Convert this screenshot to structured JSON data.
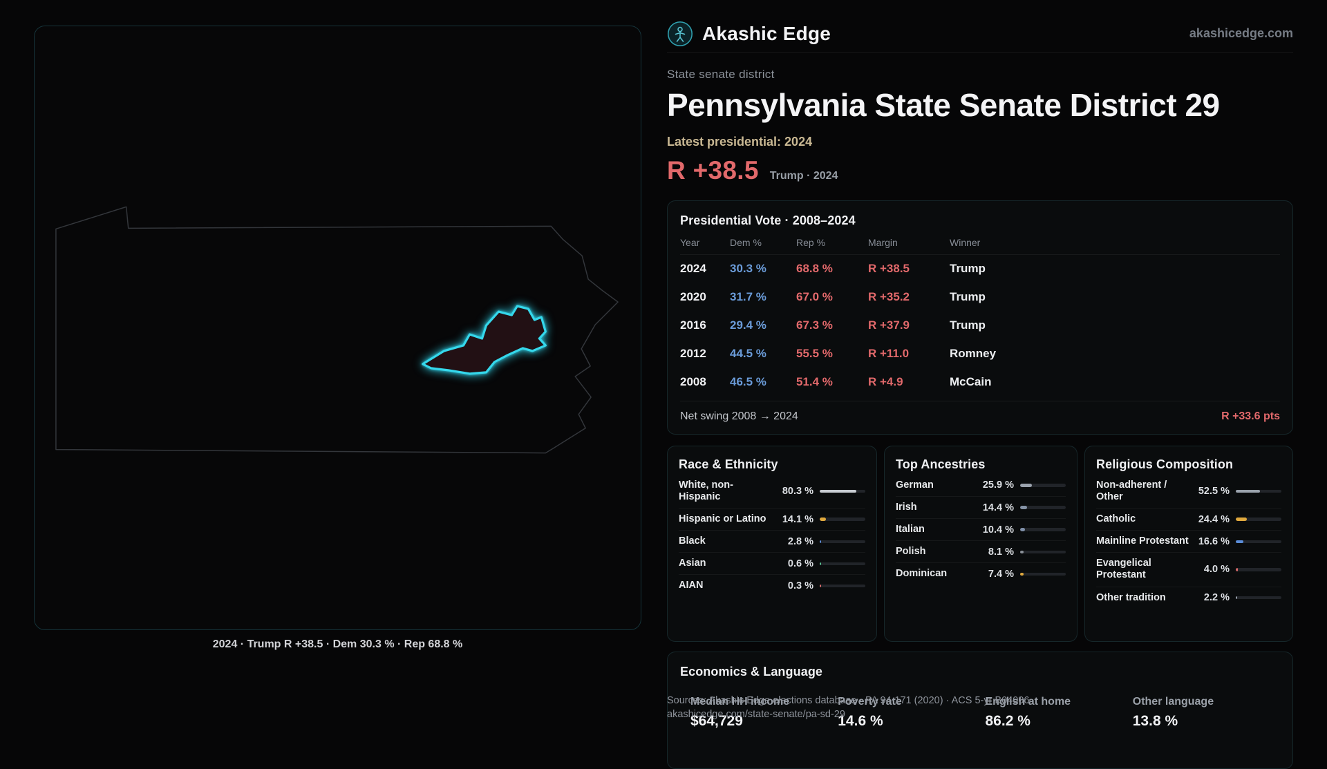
{
  "header": {
    "brand": "Akashic Edge",
    "site": "akashicedge.com"
  },
  "hero": {
    "kicker": "State senate district",
    "title": "Pennsylvania State Senate District 29",
    "latest_label": "Latest presidential: 2024",
    "margin": "R +38.5",
    "margin_sub": "Trump · 2024"
  },
  "map": {
    "caption": "2024 · Trump R +38.5 · Dem 30.3 % · Rep 68.8 %"
  },
  "presidential": {
    "title": "Presidential Vote · 2008–2024",
    "columns": [
      "Year",
      "Dem %",
      "Rep %",
      "Margin",
      "Winner"
    ],
    "rows": [
      {
        "year": "2024",
        "dem": "30.3 %",
        "rep": "68.8 %",
        "margin": "R +38.5",
        "winner": "Trump"
      },
      {
        "year": "2020",
        "dem": "31.7 %",
        "rep": "67.0 %",
        "margin": "R +35.2",
        "winner": "Trump"
      },
      {
        "year": "2016",
        "dem": "29.4 %",
        "rep": "67.3 %",
        "margin": "R +37.9",
        "winner": "Trump"
      },
      {
        "year": "2012",
        "dem": "44.5 %",
        "rep": "55.5 %",
        "margin": "R +11.0",
        "winner": "Romney"
      },
      {
        "year": "2008",
        "dem": "46.5 %",
        "rep": "51.4 %",
        "margin": "R +4.9",
        "winner": "McCain"
      }
    ],
    "net_swing_label": "Net swing 2008 → 2024",
    "net_swing_value": "R +33.6 pts"
  },
  "race": {
    "title": "Race & Ethnicity",
    "rows": [
      {
        "label": "White, non-Hispanic",
        "value": "80.3 %",
        "pct": 80.3,
        "color": "#c8ccd2"
      },
      {
        "label": "Hispanic or Latino",
        "value": "14.1 %",
        "pct": 14.1,
        "color": "#e0a93e"
      },
      {
        "label": "Black",
        "value": "2.8 %",
        "pct": 2.8,
        "color": "#5b8dd9"
      },
      {
        "label": "Asian",
        "value": "0.6 %",
        "pct": 0.6,
        "color": "#57bd8e"
      },
      {
        "label": "AIAN",
        "value": "0.3 %",
        "pct": 0.3,
        "color": "#d96b6b"
      }
    ]
  },
  "ancestries": {
    "title": "Top Ancestries",
    "rows": [
      {
        "label": "German",
        "value": "25.9 %",
        "pct": 25.9,
        "color": "#9aa2ac"
      },
      {
        "label": "Irish",
        "value": "14.4 %",
        "pct": 14.4,
        "color": "#8593a6"
      },
      {
        "label": "Italian",
        "value": "10.4 %",
        "pct": 10.4,
        "color": "#7f8fa8"
      },
      {
        "label": "Polish",
        "value": "8.1 %",
        "pct": 8.1,
        "color": "#8a9098"
      },
      {
        "label": "Dominican",
        "value": "7.4 %",
        "pct": 7.4,
        "color": "#e0a93e"
      }
    ]
  },
  "religion": {
    "title": "Religious Composition",
    "rows": [
      {
        "label": "Non-adherent / Other",
        "value": "52.5 %",
        "pct": 52.5,
        "color": "#9aa2ac"
      },
      {
        "label": "Catholic",
        "value": "24.4 %",
        "pct": 24.4,
        "color": "#e0a93e"
      },
      {
        "label": "Mainline Protestant",
        "value": "16.6 %",
        "pct": 16.6,
        "color": "#5b8dd9"
      },
      {
        "label": "Evangelical Protestant",
        "value": "4.0 %",
        "pct": 4.0,
        "color": "#d96b6b"
      },
      {
        "label": "Other tradition",
        "value": "2.2 %",
        "pct": 2.2,
        "color": "#9aa2ac"
      }
    ]
  },
  "economics": {
    "title": "Economics & Language",
    "stats": [
      {
        "label": "Median HH income",
        "value": "$64,729"
      },
      {
        "label": "Poverty rate",
        "value": "14.6 %"
      },
      {
        "label": "English at home",
        "value": "86.2 %"
      },
      {
        "label": "Other language",
        "value": "13.8 %"
      }
    ]
  },
  "footer": {
    "sources": "Sources: Akashic Edge elections database · PA 94-171 (2020) · ACS 5-yr B04006",
    "permalink": "akashicedge.com/state-senate/pa-sd-29"
  },
  "colors": {
    "dem": "#6b9cd9",
    "rep": "#e2696b",
    "gold": "#c9b893",
    "district": "#35d8ec",
    "brand": "#4cc3d2"
  }
}
